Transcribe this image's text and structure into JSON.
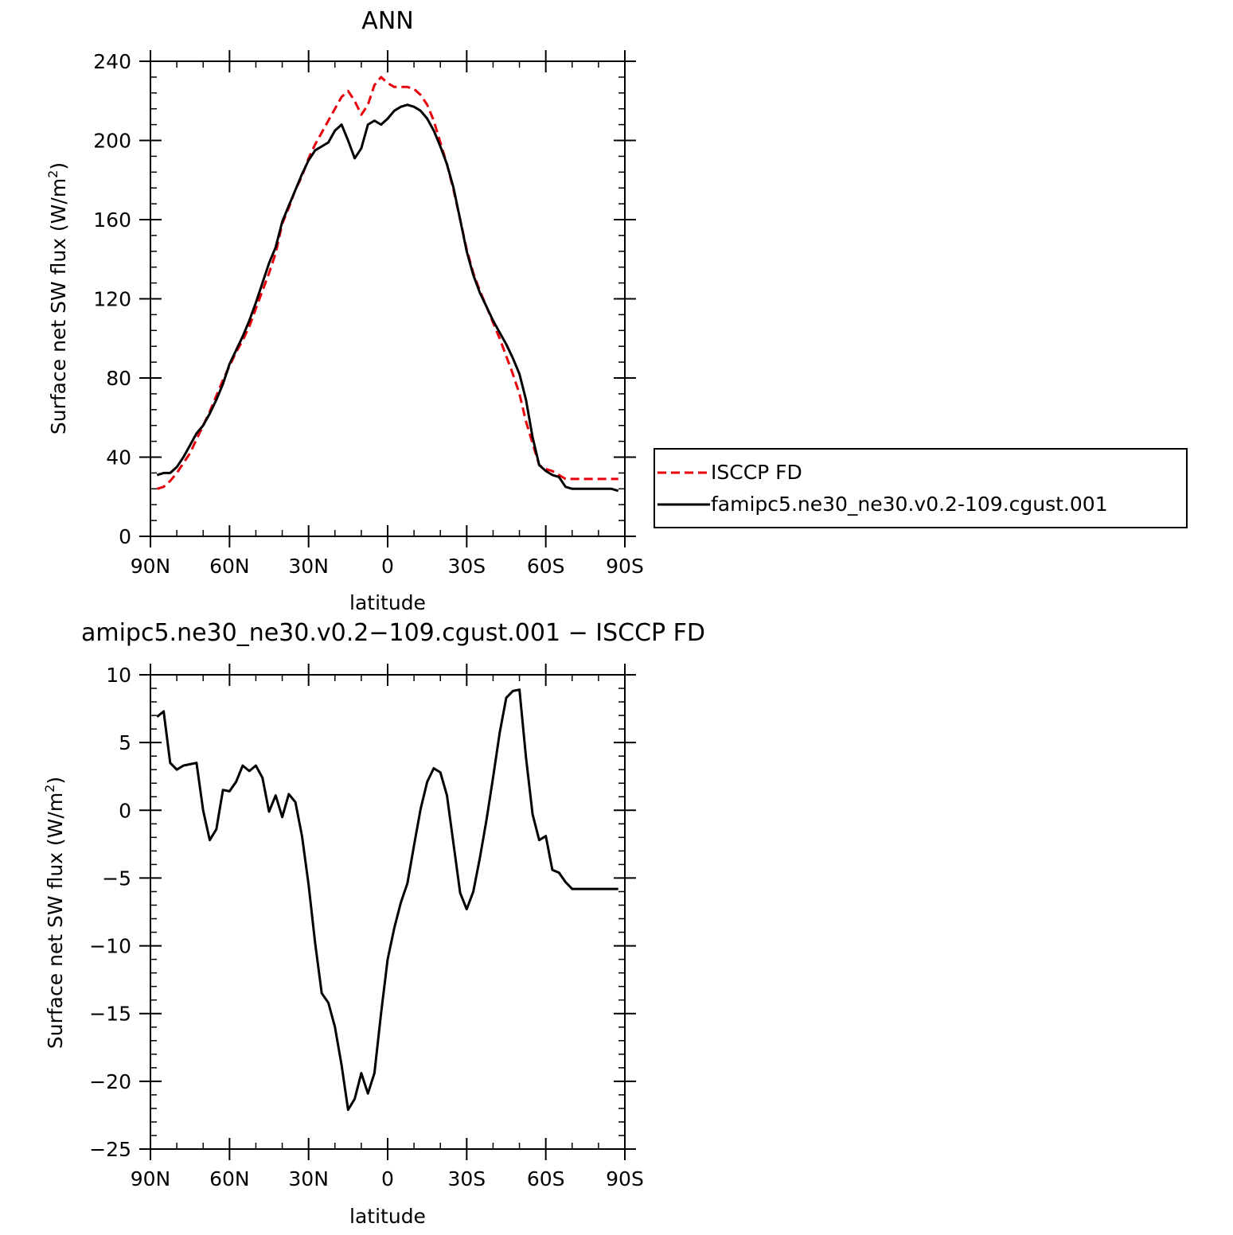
{
  "chart_data": [
    {
      "type": "line",
      "title": "ANN",
      "xlabel": "latitude",
      "ylabel": "Surface net SW flux (W/m",
      "ylabel_sup": "2",
      "ylabel_end": ")",
      "xlim": [
        90,
        -90
      ],
      "ylim": [
        0,
        240
      ],
      "x_ticks": [
        90,
        60,
        30,
        0,
        -30,
        -60,
        -90
      ],
      "x_tick_labels": [
        "90N",
        "60N",
        "30N",
        "0",
        "30S",
        "60S",
        "90S"
      ],
      "y_ticks": [
        0,
        40,
        80,
        120,
        160,
        200,
        240
      ],
      "y_tick_labels": [
        "0",
        "40",
        "80",
        "120",
        "160",
        "200",
        "240"
      ],
      "legend_position": "right",
      "x": [
        87.5,
        85,
        82.5,
        80,
        77.5,
        75,
        72.5,
        70,
        67.5,
        65,
        62.5,
        60,
        57.5,
        55,
        52.5,
        50,
        47.5,
        45,
        42.5,
        40,
        37.5,
        35,
        32.5,
        30,
        27.5,
        25,
        22.5,
        20,
        17.5,
        15,
        12.5,
        10,
        7.5,
        5,
        2.5,
        0,
        -2.5,
        -5,
        -7.5,
        -10,
        -12.5,
        -15,
        -17.5,
        -20,
        -22.5,
        -25,
        -27.5,
        -30,
        -32.5,
        -35,
        -37.5,
        -40,
        -42.5,
        -45,
        -47.5,
        -50,
        -52.5,
        -55,
        -57.5,
        -60,
        -62.5,
        -65,
        -67.5,
        -70,
        -72.5,
        -75,
        -77.5,
        -80,
        -82.5,
        -85,
        -87.5
      ],
      "series": [
        {
          "name": "ISCCP FD",
          "color": "#e8000b",
          "dash": "dashed",
          "values": [
            24,
            25,
            28,
            32,
            37,
            42,
            49,
            56,
            63,
            71,
            79,
            86,
            93,
            99,
            106,
            115,
            124,
            133,
            143,
            158,
            166,
            175,
            182,
            191,
            198,
            204,
            210,
            216,
            222,
            225,
            220,
            213,
            218,
            228,
            232,
            229,
            227,
            227,
            227,
            226,
            223,
            218,
            210,
            199,
            188,
            175,
            160,
            145,
            133,
            124,
            116,
            108,
            100,
            91,
            82,
            72,
            58,
            47,
            36,
            34,
            33,
            31,
            29,
            29,
            29,
            29,
            29,
            29,
            29,
            29,
            29
          ]
        },
        {
          "name": "famipc5.ne30_ne30.v0.2-109.cgust.001",
          "color": "#000000",
          "dash": "solid",
          "values": [
            31,
            32,
            32,
            35,
            40,
            46,
            52,
            56,
            62,
            69,
            77,
            87,
            94,
            101,
            109,
            118,
            128,
            138,
            146,
            159,
            167,
            175,
            183,
            190,
            195,
            197,
            199,
            205,
            208,
            200,
            191,
            196,
            208,
            210,
            208,
            211,
            215,
            217,
            218,
            217,
            215,
            211,
            205,
            197,
            188,
            176,
            160,
            144,
            132,
            123,
            116,
            109,
            103,
            97,
            90,
            82,
            69,
            50,
            36,
            33,
            31,
            30,
            25,
            24,
            24,
            24,
            24,
            24,
            24,
            24,
            23
          ]
        }
      ]
    },
    {
      "type": "line",
      "title": "amipc5.ne30_ne30.v0.2−109.cgust.001 − ISCCP FD",
      "xlabel": "latitude",
      "ylabel": "Surface net SW flux (W/m",
      "ylabel_sup": "2",
      "ylabel_end": ")",
      "xlim": [
        90,
        -90
      ],
      "ylim": [
        -25,
        10
      ],
      "x_ticks": [
        90,
        60,
        30,
        0,
        -30,
        -60,
        -90
      ],
      "x_tick_labels": [
        "90N",
        "60N",
        "30N",
        "0",
        "30S",
        "60S",
        "90S"
      ],
      "y_ticks": [
        10,
        5,
        0,
        -5,
        -10,
        -15,
        -20,
        -25
      ],
      "y_tick_labels": [
        "10",
        "5",
        "0",
        "−5",
        "−10",
        "−15",
        "−20",
        "−25"
      ],
      "x": [
        87.5,
        85,
        82.5,
        80,
        77.5,
        75,
        72.5,
        70,
        67.5,
        65,
        62.5,
        60,
        57.5,
        55,
        52.5,
        50,
        47.5,
        45,
        42.5,
        40,
        37.5,
        35,
        32.5,
        30,
        27.5,
        25,
        22.5,
        20,
        17.5,
        15,
        12.5,
        10,
        7.5,
        5,
        2.5,
        0,
        -2.5,
        -5,
        -7.5,
        -10,
        -12.5,
        -15,
        -17.5,
        -20,
        -22.5,
        -25,
        -27.5,
        -30,
        -32.5,
        -35,
        -37.5,
        -40,
        -42.5,
        -45,
        -47.5,
        -50,
        -52.5,
        -55,
        -57.5,
        -60,
        -62.5,
        -65,
        -67.5,
        -70,
        -72.5,
        -75,
        -77.5,
        -80,
        -82.5,
        -85,
        -87.5
      ],
      "series": [
        {
          "color": "#000000",
          "dash": "solid",
          "values": [
            6.9,
            7.3,
            3.5,
            3.0,
            3.3,
            3.4,
            3.5,
            0.0,
            -2.2,
            -1.4,
            1.5,
            1.4,
            2.1,
            3.3,
            2.9,
            3.3,
            2.4,
            -0.1,
            1.1,
            -0.5,
            1.2,
            0.6,
            -1.9,
            -5.5,
            -9.8,
            -13.5,
            -14.2,
            -16.0,
            -18.8,
            -22.1,
            -21.3,
            -19.4,
            -20.9,
            -19.4,
            -15.0,
            -11.0,
            -8.7,
            -6.8,
            -5.4,
            -2.6,
            0.1,
            2.1,
            3.1,
            2.8,
            1.1,
            -2.5,
            -6.1,
            -7.3,
            -6.0,
            -3.5,
            -0.7,
            2.4,
            5.7,
            8.3,
            8.8,
            8.9,
            3.9,
            -0.3,
            -2.2,
            -1.9,
            -4.4,
            -4.6,
            -5.3,
            -5.8,
            -5.8,
            -5.8,
            -5.8,
            -5.8,
            -5.8,
            -5.8,
            -5.8
          ]
        }
      ]
    }
  ]
}
